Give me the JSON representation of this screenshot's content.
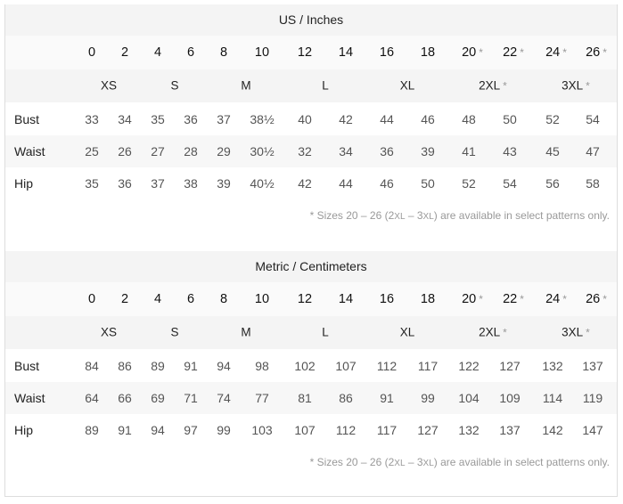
{
  "tables": [
    {
      "title": "US / Inches",
      "sizes": [
        {
          "v": "0"
        },
        {
          "v": "2"
        },
        {
          "v": "4"
        },
        {
          "v": "6"
        },
        {
          "v": "8"
        },
        {
          "v": "10"
        },
        {
          "v": "12"
        },
        {
          "v": "14"
        },
        {
          "v": "16"
        },
        {
          "v": "18"
        },
        {
          "v": "20",
          "ast": "*"
        },
        {
          "v": "22",
          "ast": "*"
        },
        {
          "v": "24",
          "ast": "*"
        },
        {
          "v": "26",
          "ast": "*"
        }
      ],
      "letters": [
        {
          "v": "XS"
        },
        {
          "v": "S"
        },
        {
          "v": "M"
        },
        {
          "v": "L"
        },
        {
          "v": "XL"
        },
        {
          "v": "2XL",
          "ast": "*"
        },
        {
          "v": "3XL",
          "ast": "*"
        }
      ],
      "rows": [
        {
          "label": "Bust",
          "values": [
            "33",
            "34",
            "35",
            "36",
            "37",
            "38½",
            "40",
            "42",
            "44",
            "46",
            "48",
            "50",
            "52",
            "54"
          ]
        },
        {
          "label": "Waist",
          "values": [
            "25",
            "26",
            "27",
            "28",
            "29",
            "30½",
            "32",
            "34",
            "36",
            "39",
            "41",
            "43",
            "45",
            "47"
          ]
        },
        {
          "label": "Hip",
          "values": [
            "35",
            "36",
            "37",
            "38",
            "39",
            "40½",
            "42",
            "44",
            "46",
            "50",
            "52",
            "54",
            "56",
            "58"
          ]
        }
      ],
      "note": {
        "a": "* Sizes 20 – 26 (2",
        "b": "XL",
        "c": " – 3",
        "d": "XL",
        "e": ") are available in select patterns only."
      }
    },
    {
      "title": "Metric / Centimeters",
      "sizes": [
        {
          "v": "0"
        },
        {
          "v": "2"
        },
        {
          "v": "4"
        },
        {
          "v": "6"
        },
        {
          "v": "8"
        },
        {
          "v": "10"
        },
        {
          "v": "12"
        },
        {
          "v": "14"
        },
        {
          "v": "16"
        },
        {
          "v": "18"
        },
        {
          "v": "20",
          "ast": "*"
        },
        {
          "v": "22",
          "ast": "*"
        },
        {
          "v": "24",
          "ast": "*"
        },
        {
          "v": "26",
          "ast": "*"
        }
      ],
      "letters": [
        {
          "v": "XS"
        },
        {
          "v": "S"
        },
        {
          "v": "M"
        },
        {
          "v": "L"
        },
        {
          "v": "XL"
        },
        {
          "v": "2XL",
          "ast": "*"
        },
        {
          "v": "3XL",
          "ast": "*"
        }
      ],
      "rows": [
        {
          "label": "Bust",
          "values": [
            "84",
            "86",
            "89",
            "91",
            "94",
            "98",
            "102",
            "107",
            "112",
            "117",
            "122",
            "127",
            "132",
            "137"
          ]
        },
        {
          "label": "Waist",
          "values": [
            "64",
            "66",
            "69",
            "71",
            "74",
            "77",
            "81",
            "86",
            "91",
            "99",
            "104",
            "109",
            "114",
            "119"
          ]
        },
        {
          "label": "Hip",
          "values": [
            "89",
            "91",
            "94",
            "97",
            "99",
            "103",
            "107",
            "112",
            "117",
            "127",
            "132",
            "137",
            "142",
            "147"
          ]
        }
      ],
      "note": {
        "a": "* Sizes 20 – 26 (2",
        "b": "XL",
        "c": " – 3",
        "d": "XL",
        "e": ") are available in select patterns only."
      }
    }
  ]
}
